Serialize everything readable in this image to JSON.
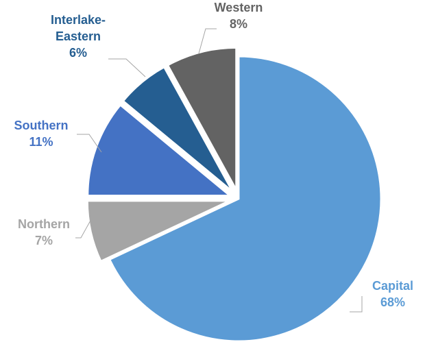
{
  "chart_data": {
    "type": "pie",
    "categories": [
      "Capital",
      "Northern",
      "Southern",
      "Interlake-Eastern",
      "Western"
    ],
    "values": [
      68,
      7,
      11,
      6,
      8
    ],
    "labels": [
      {
        "name": "Capital",
        "pct": "68%"
      },
      {
        "name": "Northern",
        "pct": "7%"
      },
      {
        "name": "Southern",
        "pct": "11%"
      },
      {
        "name_lines": [
          "Interlake-",
          "Eastern"
        ],
        "pct": "6%"
      },
      {
        "name": "Western",
        "pct": "8%"
      }
    ],
    "colors": [
      "#5B9BD5",
      "#A5A5A5",
      "#4472C4",
      "#255E91",
      "#636363"
    ],
    "label_colors": [
      "#5B9BD5",
      "#A5A5A5",
      "#4472C4",
      "#255E91",
      "#636363"
    ],
    "legend": "none",
    "exploded": true
  }
}
